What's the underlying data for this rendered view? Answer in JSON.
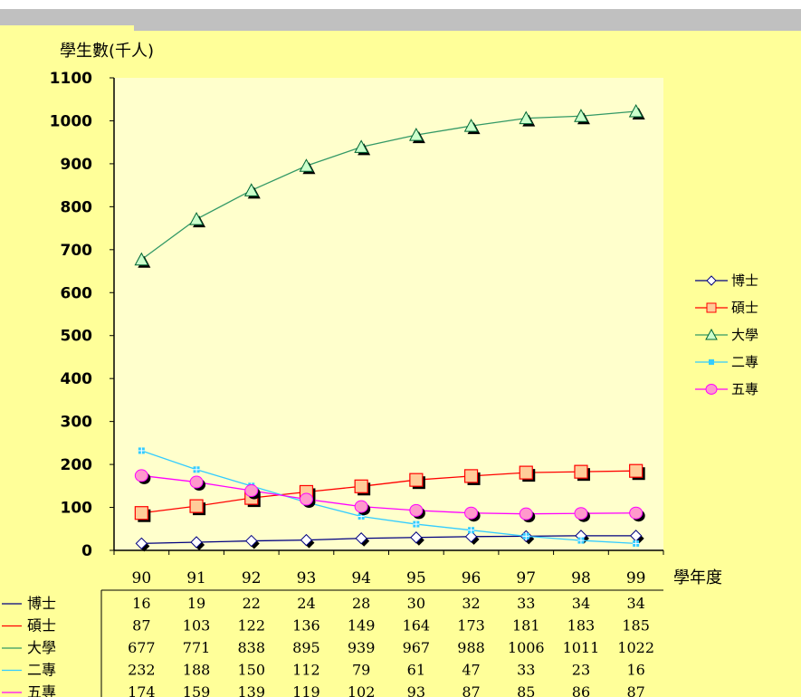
{
  "chart_data": {
    "type": "line",
    "ylabel": "學生數(千人)",
    "xlabel": "學年度",
    "ylim": [
      0,
      1100
    ],
    "yticks": [
      0,
      100,
      200,
      300,
      400,
      500,
      600,
      700,
      800,
      900,
      1000,
      1100
    ],
    "categories": [
      "90",
      "91",
      "92",
      "93",
      "94",
      "95",
      "96",
      "97",
      "98",
      "99"
    ],
    "grid": false,
    "legend_position": "right",
    "series": [
      {
        "name": "博士",
        "marker": "diamond",
        "color": "#000080",
        "fill": "#ffffff",
        "values": [
          16,
          19,
          22,
          24,
          28,
          30,
          32,
          33,
          34,
          34
        ]
      },
      {
        "name": "碩士",
        "marker": "square",
        "color": "#ff0000",
        "fill": "#ffcc99",
        "values": [
          87,
          103,
          122,
          136,
          149,
          164,
          173,
          181,
          183,
          185
        ]
      },
      {
        "name": "大學",
        "marker": "triangle",
        "color": "#339966",
        "fill": "#ccffcc",
        "values": [
          677,
          771,
          838,
          895,
          939,
          967,
          988,
          1006,
          1011,
          1022
        ]
      },
      {
        "name": "二專",
        "marker": "cross",
        "color": "#33ccff",
        "fill": "#33ccff",
        "values": [
          232,
          188,
          150,
          112,
          79,
          61,
          47,
          33,
          23,
          16
        ]
      },
      {
        "name": "五專",
        "marker": "circle",
        "color": "#ff00ff",
        "fill": "#ff99cc",
        "values": [
          174,
          159,
          139,
          119,
          102,
          93,
          87,
          85,
          86,
          87
        ]
      }
    ]
  },
  "colors": {
    "chart_background": "#ffff99",
    "plot_area": "#ffffcc",
    "header_bar": "#c0c0c0"
  }
}
